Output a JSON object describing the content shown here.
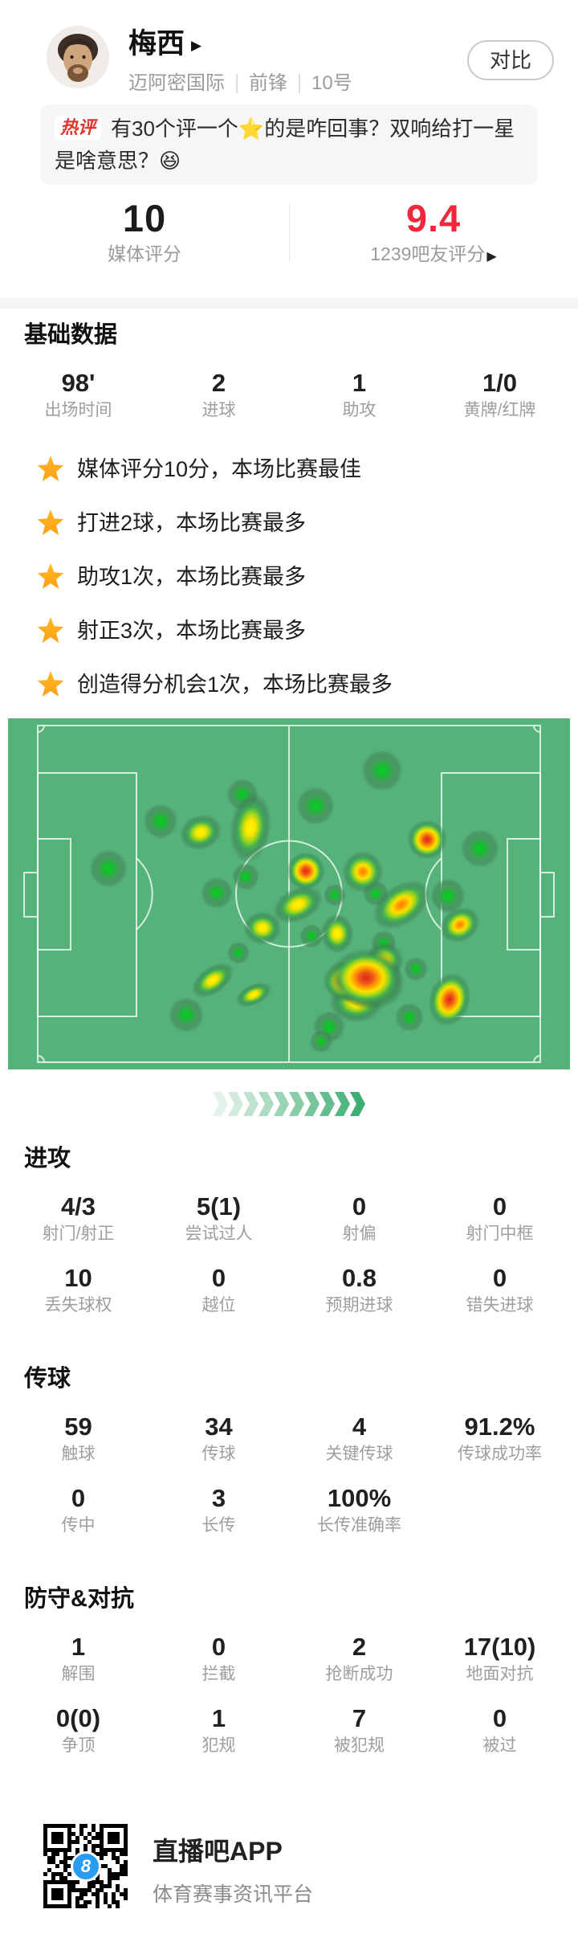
{
  "header": {
    "player_name": "梅西",
    "name_arrow": "▶",
    "team": "迈阿密国际",
    "position": "前锋",
    "shirt_number": "10号",
    "compare_button": "对比"
  },
  "hot_comment": {
    "badge": "热评",
    "text": "有30个评一个⭐的是咋回事？双响给打一星是啥意思？😆"
  },
  "ratings": {
    "media": {
      "value": "10",
      "label": "媒体评分"
    },
    "fans": {
      "value": "9.4",
      "label": "1239吧友评分",
      "arrow": "▶",
      "color": "#f0283c"
    }
  },
  "stat_sections": [
    {
      "id": "basic",
      "title": "基础数据",
      "rows": [
        [
          {
            "value": "98'",
            "label": "出场时间"
          },
          {
            "value": "2",
            "label": "进球"
          },
          {
            "value": "1",
            "label": "助攻"
          },
          {
            "value": "1/0",
            "label": "黄牌/红牌"
          }
        ]
      ]
    },
    {
      "id": "attack",
      "title": "进攻",
      "rows": [
        [
          {
            "value": "4/3",
            "label": "射门/射正"
          },
          {
            "value": "5(1)",
            "label": "尝试过人"
          },
          {
            "value": "0",
            "label": "射偏"
          },
          {
            "value": "0",
            "label": "射门中框"
          }
        ],
        [
          {
            "value": "10",
            "label": "丢失球权"
          },
          {
            "value": "0",
            "label": "越位"
          },
          {
            "value": "0.8",
            "label": "预期进球"
          },
          {
            "value": "0",
            "label": "错失进球"
          }
        ]
      ]
    },
    {
      "id": "passing",
      "title": "传球",
      "rows": [
        [
          {
            "value": "59",
            "label": "触球"
          },
          {
            "value": "34",
            "label": "传球"
          },
          {
            "value": "4",
            "label": "关键传球"
          },
          {
            "value": "91.2%",
            "label": "传球成功率"
          }
        ],
        [
          {
            "value": "0",
            "label": "传中"
          },
          {
            "value": "3",
            "label": "长传"
          },
          {
            "value": "100%",
            "label": "长传准确率"
          }
        ]
      ]
    },
    {
      "id": "defense",
      "title": "防守&对抗",
      "rows": [
        [
          {
            "value": "1",
            "label": "解围"
          },
          {
            "value": "0",
            "label": "拦截"
          },
          {
            "value": "2",
            "label": "抢断成功"
          },
          {
            "value": "17(10)",
            "label": "地面对抗"
          }
        ],
        [
          {
            "value": "0(0)",
            "label": "争顶"
          },
          {
            "value": "1",
            "label": "犯规"
          },
          {
            "value": "7",
            "label": "被犯规"
          },
          {
            "value": "0",
            "label": "被过"
          }
        ]
      ]
    }
  ],
  "highlights": [
    "媒体评分10分，本场比赛最佳",
    "打进2球，本场比赛最多",
    "助攻1次，本场比赛最多",
    "射正3次，本场比赛最多",
    "创造得分机会1次，本场比赛最多"
  ],
  "heatmap": {
    "pitch_color": "#55b379",
    "line_color": "rgba(255,255,255,0.75)",
    "blobs": [
      [
        "g",
        466,
        65,
        26,
        26,
        0
      ],
      [
        "g",
        292,
        95,
        20,
        20,
        0
      ],
      [
        "g",
        383,
        109,
        24,
        24,
        0
      ],
      [
        "g",
        190,
        128,
        22,
        22,
        0
      ],
      [
        "g",
        125,
        187,
        24,
        24,
        0
      ],
      [
        "g",
        260,
        217,
        20,
        20,
        0
      ],
      [
        "g",
        296,
        197,
        17,
        17,
        0
      ],
      [
        "g",
        588,
        162,
        24,
        24,
        0
      ],
      [
        "g",
        548,
        221,
        22,
        22,
        0
      ],
      [
        "g",
        407,
        220,
        14,
        14,
        0
      ],
      [
        "g",
        458,
        218,
        16,
        16,
        0
      ],
      [
        "g",
        378,
        271,
        15,
        15,
        0
      ],
      [
        "g",
        287,
        292,
        14,
        14,
        0
      ],
      [
        "g",
        468,
        280,
        16,
        16,
        0
      ],
      [
        "g",
        508,
        312,
        15,
        15,
        0
      ],
      [
        "g",
        222,
        369,
        22,
        22,
        0
      ],
      [
        "g",
        400,
        384,
        20,
        20,
        0
      ],
      [
        "g",
        390,
        402,
        14,
        14,
        0
      ],
      [
        "g",
        500,
        372,
        18,
        18,
        0
      ],
      [
        "y",
        240,
        142,
        27,
        22,
        -20
      ],
      [
        "y",
        302,
        136,
        26,
        44,
        8
      ],
      [
        "y",
        361,
        232,
        33,
        21,
        -25
      ],
      [
        "y",
        317,
        261,
        24,
        21,
        0
      ],
      [
        "y",
        410,
        268,
        21,
        25,
        0
      ],
      [
        "y",
        255,
        326,
        30,
        17,
        -35
      ],
      [
        "y",
        306,
        344,
        24,
        13,
        -25
      ],
      [
        "y",
        434,
        353,
        34,
        26,
        0
      ],
      [
        "y",
        469,
        302,
        24,
        24,
        0
      ],
      [
        "o",
        442,
        191,
        26,
        26,
        0
      ],
      [
        "o",
        490,
        232,
        40,
        25,
        -35
      ],
      [
        "o",
        563,
        257,
        26,
        21,
        -30
      ],
      [
        "o",
        453,
        330,
        42,
        33,
        0
      ],
      [
        "r",
        371,
        190,
        24,
        24,
        0
      ],
      [
        "r",
        522,
        151,
        25,
        25,
        0
      ],
      [
        "r",
        422,
        327,
        30,
        26,
        0
      ],
      [
        "r",
        446,
        323,
        46,
        37,
        0
      ],
      [
        "r",
        550,
        350,
        26,
        34,
        15
      ]
    ]
  },
  "divider": {
    "count": 10,
    "color_start": "#e3f2e9",
    "color_end": "#3fae74"
  },
  "footer": {
    "app_name": "直播吧APP",
    "tagline": "体育赛事资讯平台",
    "qr_logo": "8"
  }
}
